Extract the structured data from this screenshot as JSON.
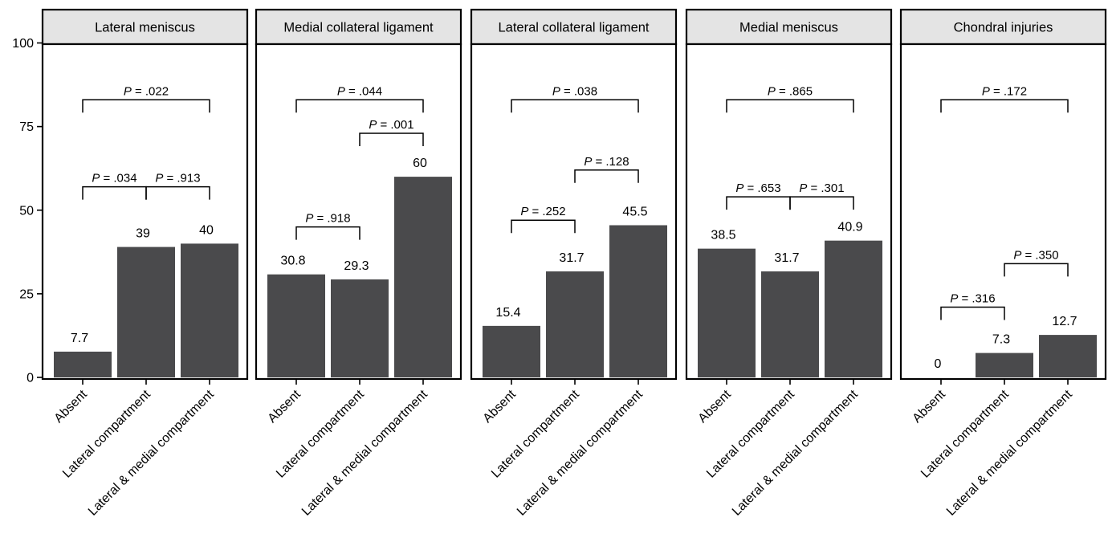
{
  "chart_data": {
    "type": "bar",
    "ylim": [
      0,
      100
    ],
    "y_ticks": [
      0,
      25,
      50,
      75,
      100
    ],
    "categories": [
      "Absent",
      "Lateral compartment",
      "Lateral & medial compartment"
    ],
    "bar_color": "#4a4a4c",
    "strip_color": "#e4e4e4",
    "p_prefix": "P",
    "panels": [
      {
        "title": "Lateral meniscus",
        "values": [
          7.7,
          39,
          40
        ],
        "value_labels": [
          "7.7",
          "39",
          "40"
        ],
        "comparisons": [
          {
            "from": 0,
            "to": 1,
            "p": "= .034",
            "y": 57
          },
          {
            "from": 1,
            "to": 2,
            "p": "= .913",
            "y": 57
          },
          {
            "from": 0,
            "to": 2,
            "p": "= .022",
            "y": 83
          }
        ]
      },
      {
        "title": "Medial collateral ligament",
        "values": [
          30.8,
          29.3,
          60
        ],
        "value_labels": [
          "30.8",
          "29.3",
          "60"
        ],
        "comparisons": [
          {
            "from": 0,
            "to": 1,
            "p": "= .918",
            "y": 45
          },
          {
            "from": 1,
            "to": 2,
            "p": "= .001",
            "y": 73
          },
          {
            "from": 0,
            "to": 2,
            "p": "= .044",
            "y": 83
          }
        ]
      },
      {
        "title": "Lateral collateral ligament",
        "values": [
          15.4,
          31.7,
          45.5
        ],
        "value_labels": [
          "15.4",
          "31.7",
          "45.5"
        ],
        "comparisons": [
          {
            "from": 0,
            "to": 1,
            "p": "= .252",
            "y": 47
          },
          {
            "from": 1,
            "to": 2,
            "p": "= .128",
            "y": 62
          },
          {
            "from": 0,
            "to": 2,
            "p": "= .038",
            "y": 83
          }
        ]
      },
      {
        "title": "Medial meniscus",
        "values": [
          38.5,
          31.7,
          40.9
        ],
        "value_labels": [
          "38.5",
          "31.7",
          "40.9"
        ],
        "comparisons": [
          {
            "from": 0,
            "to": 1,
            "p": "= .653",
            "y": 54
          },
          {
            "from": 1,
            "to": 2,
            "p": "= .301",
            "y": 54
          },
          {
            "from": 0,
            "to": 2,
            "p": "= .865",
            "y": 83
          }
        ]
      },
      {
        "title": "Chondral injuries",
        "values": [
          0,
          7.3,
          12.7
        ],
        "value_labels": [
          "0",
          "7.3",
          "12.7"
        ],
        "comparisons": [
          {
            "from": 0,
            "to": 1,
            "p": "= .316",
            "y": 21
          },
          {
            "from": 1,
            "to": 2,
            "p": "= .350",
            "y": 34
          },
          {
            "from": 0,
            "to": 2,
            "p": "= .172",
            "y": 83
          }
        ]
      }
    ]
  }
}
